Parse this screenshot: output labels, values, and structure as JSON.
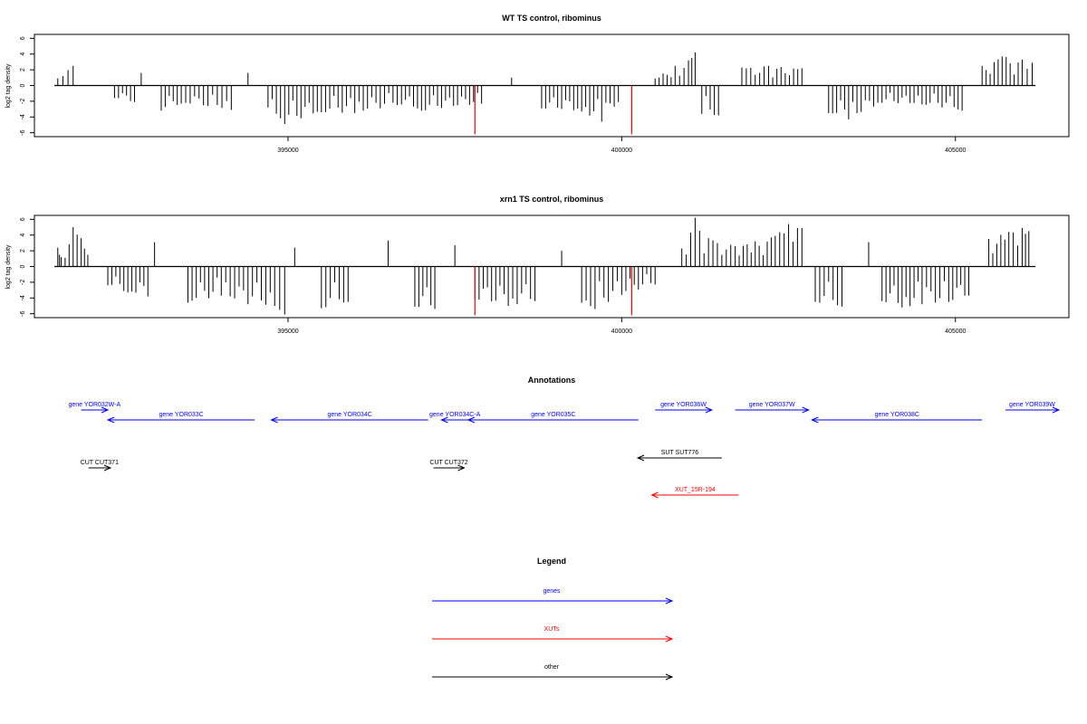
{
  "chart_data": [
    {
      "type": "bar",
      "title": "WT TS control, ribominus",
      "xlabel": "",
      "ylabel": "log2 tag density",
      "xlim": [
        391200,
        406700
      ],
      "ylim": [
        -6.5,
        6.5
      ],
      "xticks": [
        395000,
        400000,
        405000
      ],
      "xtick_labels": [
        "395000",
        "400000",
        "405000"
      ],
      "yticks": [
        -6,
        -4,
        -2,
        0,
        2,
        4,
        6
      ],
      "ytick_labels": [
        "-6",
        "-4",
        "-2",
        "0",
        "2",
        "4",
        "6"
      ],
      "baseline": [
        391500,
        406200
      ],
      "grid": false,
      "colors": {
        "bars": "#000000",
        "highlight": "#ff0000"
      },
      "series": [
        {
          "kind": "signal",
          "points": [
            [
              391550,
              0.9
            ],
            [
              391780,
              2.5
            ],
            [
              392400,
              -1.6
            ],
            [
              392700,
              -2.1
            ],
            [
              392800,
              1.6
            ],
            [
              393100,
              -3.2
            ],
            [
              393400,
              -2.3
            ],
            [
              393800,
              -2.6
            ],
            [
              394150,
              -3.1
            ],
            [
              394400,
              1.6
            ],
            [
              394700,
              -2.8
            ],
            [
              394950,
              -4.9
            ],
            [
              395500,
              -3.4
            ],
            [
              396000,
              -3.5
            ],
            [
              396700,
              -2.4
            ],
            [
              397000,
              -3.2
            ],
            [
              397900,
              -2.3
            ],
            [
              398350,
              1.0
            ],
            [
              398800,
              -2.9
            ],
            [
              399400,
              -3.3
            ],
            [
              399700,
              -4.6
            ],
            [
              399950,
              -2.1
            ],
            [
              400500,
              0.9
            ],
            [
              400800,
              2.5
            ],
            [
              401000,
              3.2
            ],
            [
              401100,
              4.2
            ],
            [
              401200,
              -3.6
            ],
            [
              401450,
              -3.8
            ],
            [
              401800,
              2.3
            ],
            [
              402200,
              2.5
            ],
            [
              402700,
              2.2
            ],
            [
              403100,
              -3.5
            ],
            [
              403400,
              -4.3
            ],
            [
              403900,
              -2.2
            ],
            [
              404500,
              -2.4
            ],
            [
              405100,
              -3.2
            ],
            [
              405400,
              2.5
            ],
            [
              405700,
              3.7
            ],
            [
              406000,
              3.3
            ],
            [
              406150,
              2.9
            ]
          ]
        },
        {
          "kind": "highlight",
          "points": [
            [
              397800,
              -6.2
            ],
            [
              400150,
              -6.2
            ]
          ]
        }
      ]
    },
    {
      "type": "bar",
      "title": "xrn1 TS control, ribominus",
      "xlabel": "",
      "ylabel": "log2 tag density",
      "xlim": [
        391200,
        406700
      ],
      "ylim": [
        -6.5,
        6.5
      ],
      "xticks": [
        395000,
        400000,
        405000
      ],
      "xtick_labels": [
        "395000",
        "400000",
        "405000"
      ],
      "yticks": [
        -6,
        -4,
        -2,
        0,
        2,
        4,
        6
      ],
      "ytick_labels": [
        "-6",
        "-4",
        "-2",
        "0",
        "2",
        "4",
        "6"
      ],
      "baseline": [
        391500,
        406200
      ],
      "grid": false,
      "colors": {
        "bars": "#000000",
        "highlight": "#ff0000"
      },
      "series": [
        {
          "kind": "signal",
          "points": [
            [
              391550,
              2.4
            ],
            [
              391600,
              1.2
            ],
            [
              391780,
              5.0
            ],
            [
              391900,
              3.6
            ],
            [
              392000,
              1.5
            ],
            [
              392300,
              -2.4
            ],
            [
              392600,
              -3.3
            ],
            [
              392900,
              -3.8
            ],
            [
              393000,
              3.1
            ],
            [
              393500,
              -4.6
            ],
            [
              394000,
              -3.7
            ],
            [
              394400,
              -4.8
            ],
            [
              394800,
              -5.0
            ],
            [
              394950,
              -6.1
            ],
            [
              395100,
              2.4
            ],
            [
              395500,
              -5.3
            ],
            [
              395900,
              -4.5
            ],
            [
              396500,
              3.3
            ],
            [
              396900,
              -5.1
            ],
            [
              397200,
              -5.4
            ],
            [
              397500,
              2.7
            ],
            [
              397800,
              -4.2
            ],
            [
              398300,
              -5.0
            ],
            [
              398700,
              -4.4
            ],
            [
              399100,
              2.0
            ],
            [
              399400,
              -4.6
            ],
            [
              399600,
              -5.4
            ],
            [
              400000,
              -3.6
            ],
            [
              400500,
              -2.3
            ],
            [
              400900,
              2.3
            ],
            [
              401100,
              6.2
            ],
            [
              401300,
              3.6
            ],
            [
              401700,
              2.6
            ],
            [
              402000,
              3.2
            ],
            [
              402300,
              3.9
            ],
            [
              402500,
              5.4
            ],
            [
              402700,
              4.9
            ],
            [
              402900,
              -4.5
            ],
            [
              403300,
              -5.1
            ],
            [
              403700,
              3.1
            ],
            [
              403900,
              -4.4
            ],
            [
              404200,
              -5.2
            ],
            [
              404500,
              -4.8
            ],
            [
              404900,
              -4.5
            ],
            [
              405200,
              -3.7
            ],
            [
              405500,
              3.5
            ],
            [
              405800,
              4.4
            ],
            [
              406000,
              4.9
            ],
            [
              406100,
              4.5
            ]
          ]
        },
        {
          "kind": "highlight",
          "points": [
            [
              397800,
              -6.2
            ],
            [
              400150,
              -6.2
            ]
          ]
        }
      ]
    }
  ],
  "annotations": {
    "title": "Annotations",
    "xlim": [
      391200,
      406700
    ],
    "colors": {
      "gene": "#0000ff",
      "xut": "#ff0000",
      "other": "#000000"
    },
    "features": [
      {
        "label": "gene YOR032W-A",
        "type": "gene",
        "strand": "+",
        "start": 391900,
        "end": 392300,
        "row": 1
      },
      {
        "label": "gene YOR033C",
        "type": "gene",
        "strand": "-",
        "start": 392300,
        "end": 394500,
        "row": 2
      },
      {
        "label": "gene YOR034C",
        "type": "gene",
        "strand": "-",
        "start": 394750,
        "end": 397100,
        "row": 2
      },
      {
        "label": "gene YOR034C-A",
        "type": "gene",
        "strand": "-",
        "start": 397300,
        "end": 397700,
        "row": 2
      },
      {
        "label": "gene YOR035C",
        "type": "gene",
        "strand": "-",
        "start": 397700,
        "end": 400250,
        "row": 2
      },
      {
        "label": "gene YOR036W",
        "type": "gene",
        "strand": "+",
        "start": 400500,
        "end": 401350,
        "row": 1
      },
      {
        "label": "gene YOR037W",
        "type": "gene",
        "strand": "+",
        "start": 401700,
        "end": 402800,
        "row": 1
      },
      {
        "label": "gene YOR038C",
        "type": "gene",
        "strand": "-",
        "start": 402850,
        "end": 405400,
        "row": 2
      },
      {
        "label": "gene YOR039W",
        "type": "gene",
        "strand": "+",
        "start": 405750,
        "end": 406550,
        "row": 1
      },
      {
        "label": "CUT CUT371",
        "type": "other",
        "strand": "+",
        "start": 392010,
        "end": 392340,
        "row": 3
      },
      {
        "label": "CUT CUT372",
        "type": "other",
        "strand": "+",
        "start": 397180,
        "end": 397640,
        "row": 3
      },
      {
        "label": "SUT SUT776",
        "type": "other",
        "strand": "-",
        "start": 400240,
        "end": 401500,
        "row": 4
      },
      {
        "label": "XUT_15R-194",
        "type": "xut",
        "strand": "-",
        "start": 400450,
        "end": 401750,
        "row": 5
      }
    ]
  },
  "legend": {
    "title": "Legend",
    "items": [
      {
        "label": "genes",
        "color": "#0000ff"
      },
      {
        "label": "XUTs",
        "color": "#ff0000"
      },
      {
        "label": "other",
        "color": "#000000"
      }
    ]
  }
}
